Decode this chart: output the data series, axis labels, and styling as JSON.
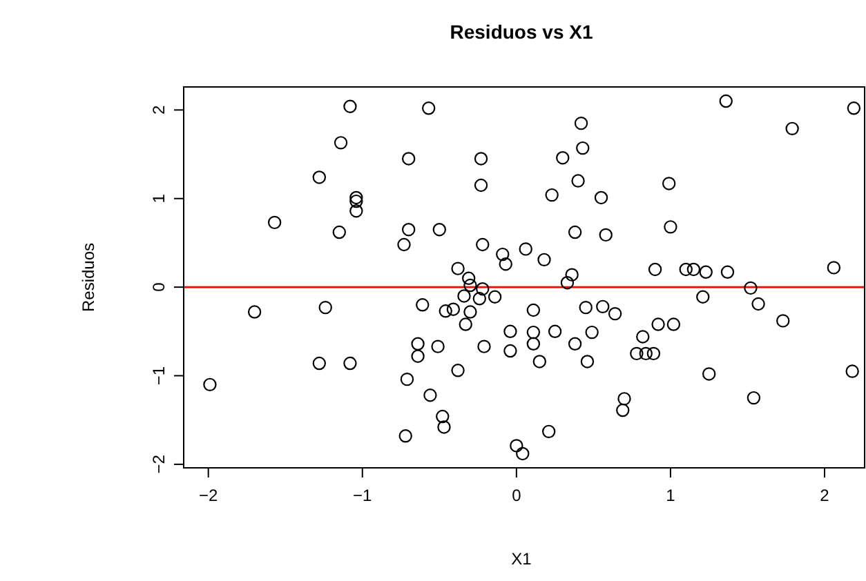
{
  "chart_data": {
    "type": "scatter",
    "title": "Residuos vs X1",
    "xlabel": "X1",
    "ylabel": "Residuos",
    "xlim": [
      -2.16,
      2.26
    ],
    "ylim": [
      -2.04,
      2.26
    ],
    "xticks": [
      -2,
      -1,
      0,
      1,
      2
    ],
    "yticks": [
      -2,
      -1,
      0,
      1,
      2
    ],
    "grid": false,
    "marker": "circle",
    "ref_lines": [
      {
        "axis": "y",
        "value": 0,
        "color": "#ff0000"
      }
    ],
    "series": [
      {
        "color": "#000000",
        "x": [
          -1.08,
          -0.57,
          -1.14,
          -0.7,
          -0.23,
          -1.28,
          -0.23,
          -1.04,
          -1.04,
          -1.04,
          -1.57,
          -1.15,
          -0.7,
          -0.5,
          -0.73,
          -0.22,
          -0.09,
          -0.07,
          0.06,
          -0.38,
          -0.31,
          -0.3,
          -0.22,
          1.36,
          2.19,
          0.42,
          1.79,
          0.43,
          0.3,
          0.4,
          0.99,
          0.23,
          0.55,
          0.38,
          0.58,
          1.0,
          0.18,
          0.36,
          0.33,
          0.9,
          1.1,
          1.15,
          1.23,
          1.37,
          2.06,
          1.52,
          -0.34,
          -0.24,
          -0.14,
          0.11,
          -1.7,
          -1.24,
          -0.61,
          -0.46,
          -0.41,
          -0.3,
          -0.33,
          -0.04,
          -0.04,
          -0.21,
          -0.51,
          -0.64,
          -0.64,
          0.11,
          0.11,
          -1.28,
          -1.08,
          -1.99,
          -0.71,
          -0.38,
          -0.56,
          -0.48,
          -0.47,
          -0.72,
          0.0,
          0.04,
          0.15,
          0.25,
          0.38,
          0.45,
          0.56,
          0.64,
          0.49,
          0.46,
          0.82,
          0.92,
          1.02,
          0.78,
          0.84,
          0.89,
          1.21,
          1.57,
          1.73,
          1.25,
          1.54,
          2.18,
          0.7,
          0.69,
          0.21
        ],
        "values": [
          2.04,
          2.02,
          1.63,
          1.45,
          1.45,
          1.24,
          1.15,
          1.01,
          0.97,
          0.86,
          0.73,
          0.62,
          0.65,
          0.65,
          0.48,
          0.48,
          0.37,
          0.26,
          0.43,
          0.21,
          0.1,
          0.02,
          -0.02,
          2.1,
          2.02,
          1.85,
          1.79,
          1.57,
          1.46,
          1.2,
          1.17,
          1.04,
          1.01,
          0.62,
          0.59,
          0.68,
          0.31,
          0.14,
          0.05,
          0.2,
          0.2,
          0.2,
          0.17,
          0.17,
          0.22,
          -0.01,
          -0.1,
          -0.13,
          -0.11,
          -0.26,
          -0.28,
          -0.23,
          -0.2,
          -0.27,
          -0.25,
          -0.28,
          -0.42,
          -0.5,
          -0.72,
          -0.67,
          -0.67,
          -0.64,
          -0.78,
          -0.51,
          -0.64,
          -0.86,
          -0.86,
          -1.1,
          -1.04,
          -0.94,
          -1.22,
          -1.46,
          -1.58,
          -1.68,
          -1.79,
          -1.88,
          -0.84,
          -0.5,
          -0.64,
          -0.23,
          -0.22,
          -0.3,
          -0.51,
          -0.84,
          -0.56,
          -0.42,
          -0.42,
          -0.75,
          -0.75,
          -0.75,
          -0.11,
          -0.19,
          -0.38,
          -0.98,
          -1.25,
          -0.95,
          -1.26,
          -1.39,
          -1.63
        ]
      }
    ]
  }
}
